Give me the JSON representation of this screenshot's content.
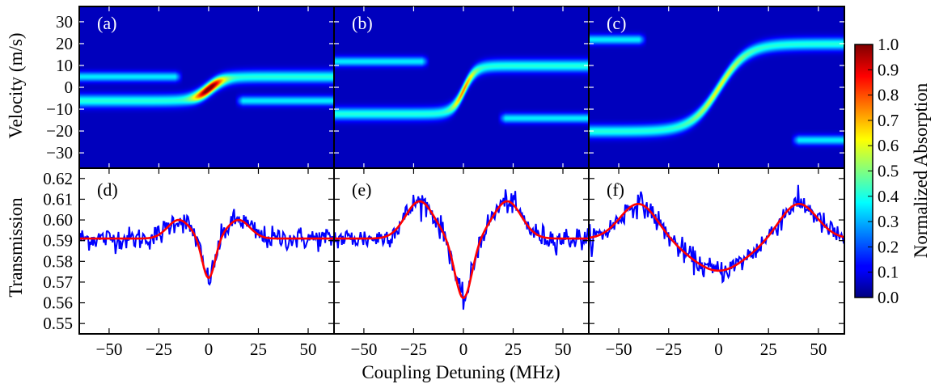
{
  "chart_data": [
    {
      "type": "heatmap",
      "panel_label": "(a)",
      "ylabel": "Velocity (m/s)",
      "xlim": [
        -65,
        63
      ],
      "ylim": [
        -37,
        37
      ],
      "yticks": [
        -30,
        -20,
        -10,
        0,
        10,
        20,
        30
      ],
      "bands": [
        {
          "x_from": -65,
          "x_to": -13,
          "v_from": 5,
          "v_to": 5,
          "intensity": 0.3,
          "width": 2.2
        },
        {
          "x_from": -65,
          "x_to": 63,
          "v_from": -6,
          "v_to": 5,
          "intensity": 0.35,
          "width": 2.8,
          "transition_center": 0,
          "transition_width": 8,
          "peak_intensity": 1.0
        },
        {
          "x_from": 13,
          "x_to": 63,
          "v_from": -6,
          "v_to": -6,
          "intensity": 0.3,
          "width": 2.2
        }
      ]
    },
    {
      "type": "heatmap",
      "panel_label": "(b)",
      "xlim": [
        -65,
        63
      ],
      "ylim": [
        -37,
        37
      ],
      "bands": [
        {
          "x_from": -65,
          "x_to": -17,
          "v_from": 12,
          "v_to": 12,
          "intensity": 0.3,
          "width": 2.2
        },
        {
          "x_from": -65,
          "x_to": 63,
          "v_from": -12,
          "v_to": 10,
          "intensity": 0.35,
          "width": 2.8,
          "transition_center": 0,
          "transition_width": 6,
          "peak_intensity": 0.7
        },
        {
          "x_from": 17,
          "x_to": 63,
          "v_from": -14,
          "v_to": -14,
          "intensity": 0.3,
          "width": 2.2
        }
      ]
    },
    {
      "type": "heatmap",
      "panel_label": "(c)",
      "xlim": [
        -65,
        63
      ],
      "ylim": [
        -37,
        37
      ],
      "bands": [
        {
          "x_from": -65,
          "x_to": -36,
          "v_from": 22,
          "v_to": 22,
          "intensity": 0.3,
          "width": 2.2
        },
        {
          "x_from": -65,
          "x_to": 63,
          "v_from": -20,
          "v_to": 20,
          "intensity": 0.35,
          "width": 2.8,
          "transition_center": 0,
          "transition_width": 14,
          "peak_intensity": 0.55
        },
        {
          "x_from": 36,
          "x_to": 63,
          "v_from": -24,
          "v_to": -24,
          "intensity": 0.3,
          "width": 2.2
        }
      ]
    },
    {
      "type": "line",
      "panel_label": "(d)",
      "ylabel": "Transmission",
      "xlim": [
        -65,
        63
      ],
      "ylim": [
        0.545,
        0.625
      ],
      "yticks": [
        "0.55",
        "0.56",
        "0.57",
        "0.58",
        "0.59",
        "0.60",
        "0.61",
        "0.62"
      ],
      "xticks": [
        "−50",
        "−25",
        "0",
        "25",
        "50"
      ],
      "fit": {
        "baseline": 0.591,
        "bumps": [
          {
            "x": -15,
            "amp": 0.009,
            "w": 8
          },
          {
            "x": 15,
            "amp": 0.009,
            "w": 8
          },
          {
            "x": 0,
            "amp": -0.0195,
            "w": 4.5
          }
        ]
      },
      "noise": 0.0035
    },
    {
      "type": "line",
      "panel_label": "(e)",
      "xlim": [
        -65,
        63
      ],
      "ylim": [
        0.545,
        0.625
      ],
      "xticks": [
        "−50",
        "−25",
        "0",
        "25",
        "50"
      ],
      "fit": {
        "baseline": 0.591,
        "bumps": [
          {
            "x": -22,
            "amp": 0.018,
            "w": 10
          },
          {
            "x": 22,
            "amp": 0.018,
            "w": 10
          },
          {
            "x": 0,
            "amp": -0.029,
            "w": 6
          }
        ]
      },
      "noise": 0.0035
    },
    {
      "type": "line",
      "panel_label": "(f)",
      "xlim": [
        -65,
        63
      ],
      "ylim": [
        0.545,
        0.625
      ],
      "xticks": [
        "−50",
        "−25",
        "0",
        "25",
        "50"
      ],
      "fit": {
        "baseline": 0.591,
        "bumps": [
          {
            "x": -40,
            "amp": 0.017,
            "w": 13
          },
          {
            "x": 40,
            "amp": 0.017,
            "w": 13
          },
          {
            "x": 0,
            "amp": -0.0155,
            "w": 20
          }
        ]
      },
      "noise": 0.0035
    }
  ],
  "xlabel": "Coupling Detuning (MHz)",
  "colorbar": {
    "label": "Normalized Absorption",
    "ticks": [
      "0.0",
      "0.1",
      "0.2",
      "0.3",
      "0.4",
      "0.5",
      "0.6",
      "0.7",
      "0.8",
      "0.9",
      "1.0"
    ]
  },
  "colors": {
    "data": "#0000ff",
    "fit": "#ff0000",
    "background": "#000080"
  }
}
